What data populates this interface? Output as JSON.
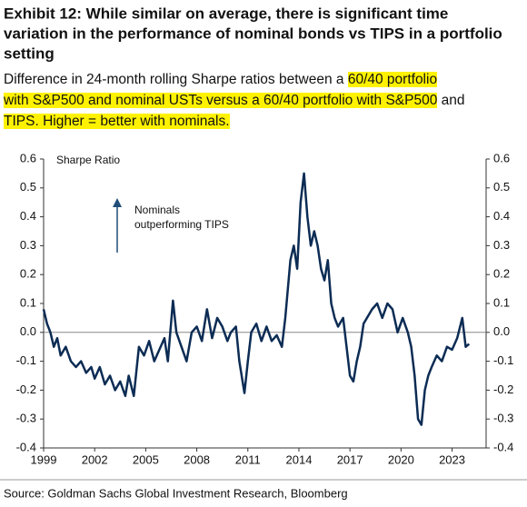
{
  "title_lines": [
    "Exhibit 12: While similar on average, there is significant time",
    "variation in the performance of nominal bonds vs TIPS in a portfolio",
    "setting"
  ],
  "subtitle_lines": [
    [
      {
        "text": "Difference in 24-month rolling Sharpe ratios between a ",
        "highlight": false
      },
      {
        "text": "60/40 portfolio",
        "highlight": true
      }
    ],
    [
      {
        "text": "with S&P500 and nominal USTs versus a 60/40 portfolio with S&P500",
        "highlight": true
      },
      {
        "text": " and",
        "highlight": false
      }
    ],
    [
      {
        "text": "TIPS. Higher = better with nominals.",
        "highlight": true
      }
    ]
  ],
  "source": "Source: Goldman Sachs Global Investment Research, Bloomberg",
  "chart_data": {
    "type": "line",
    "y_label": "Sharpe Ratio",
    "annotation_lines": [
      "Nominals",
      "outperforming TIPS"
    ],
    "color": "#0c2c54",
    "x": [
      1999.0,
      1999.2,
      1999.4,
      1999.6,
      1999.8,
      2000.0,
      2000.3,
      2000.6,
      2000.9,
      2001.2,
      2001.5,
      2001.8,
      2002.0,
      2002.3,
      2002.6,
      2002.9,
      2003.2,
      2003.5,
      2003.8,
      2004.0,
      2004.3,
      2004.6,
      2004.9,
      2005.2,
      2005.5,
      2005.8,
      2006.1,
      2006.3,
      2006.6,
      2006.8,
      2007.1,
      2007.4,
      2007.7,
      2008.0,
      2008.3,
      2008.6,
      2008.9,
      2009.2,
      2009.5,
      2009.8,
      2010.0,
      2010.3,
      2010.5,
      2010.8,
      2011.0,
      2011.2,
      2011.5,
      2011.8,
      2012.1,
      2012.4,
      2012.7,
      2013.0,
      2013.2,
      2013.5,
      2013.7,
      2013.9,
      2014.1,
      2014.3,
      2014.5,
      2014.7,
      2014.9,
      2015.1,
      2015.3,
      2015.5,
      2015.7,
      2015.9,
      2016.1,
      2016.3,
      2016.6,
      2016.8,
      2017.0,
      2017.2,
      2017.4,
      2017.6,
      2017.8,
      2018.0,
      2018.3,
      2018.6,
      2018.9,
      2019.2,
      2019.5,
      2019.8,
      2020.1,
      2020.4,
      2020.6,
      2020.8,
      2021.0,
      2021.2,
      2021.4,
      2021.6,
      2021.8,
      2022.1,
      2022.4,
      2022.7,
      2023.0,
      2023.3,
      2023.6,
      2023.8,
      2024.0
    ],
    "values": [
      0.08,
      0.03,
      0.0,
      -0.05,
      -0.02,
      -0.08,
      -0.05,
      -0.1,
      -0.12,
      -0.1,
      -0.14,
      -0.12,
      -0.16,
      -0.12,
      -0.18,
      -0.15,
      -0.2,
      -0.17,
      -0.22,
      -0.15,
      -0.22,
      -0.05,
      -0.08,
      -0.03,
      -0.1,
      -0.06,
      -0.02,
      -0.1,
      0.11,
      0.0,
      -0.05,
      -0.1,
      0.0,
      0.02,
      -0.03,
      0.08,
      -0.02,
      0.05,
      0.02,
      -0.03,
      0.0,
      0.02,
      -0.1,
      -0.21,
      -0.1,
      0.0,
      0.03,
      -0.03,
      0.02,
      -0.03,
      -0.01,
      -0.05,
      0.05,
      0.25,
      0.3,
      0.22,
      0.45,
      0.55,
      0.4,
      0.3,
      0.35,
      0.3,
      0.22,
      0.18,
      0.25,
      0.1,
      0.05,
      0.02,
      0.05,
      -0.05,
      -0.15,
      -0.17,
      -0.1,
      -0.05,
      0.03,
      0.05,
      0.08,
      0.1,
      0.05,
      0.1,
      0.08,
      0.0,
      0.05,
      0.0,
      -0.05,
      -0.15,
      -0.3,
      -0.32,
      -0.2,
      -0.15,
      -0.12,
      -0.08,
      -0.1,
      -0.05,
      -0.06,
      -0.02,
      0.05,
      -0.05,
      -0.04
    ],
    "xlim": [
      1999,
      2025
    ],
    "xticks": [
      1999,
      2002,
      2005,
      2008,
      2011,
      2014,
      2017,
      2020,
      2023
    ],
    "ylim": [
      -0.4,
      0.6
    ],
    "yticks": [
      0.6,
      0.5,
      0.4,
      0.3,
      0.2,
      0.1,
      {
        "value": 0,
        "label": "0.0"
      },
      -0.1,
      -0.2,
      -0.3,
      -0.4
    ],
    "zero_line": true
  }
}
